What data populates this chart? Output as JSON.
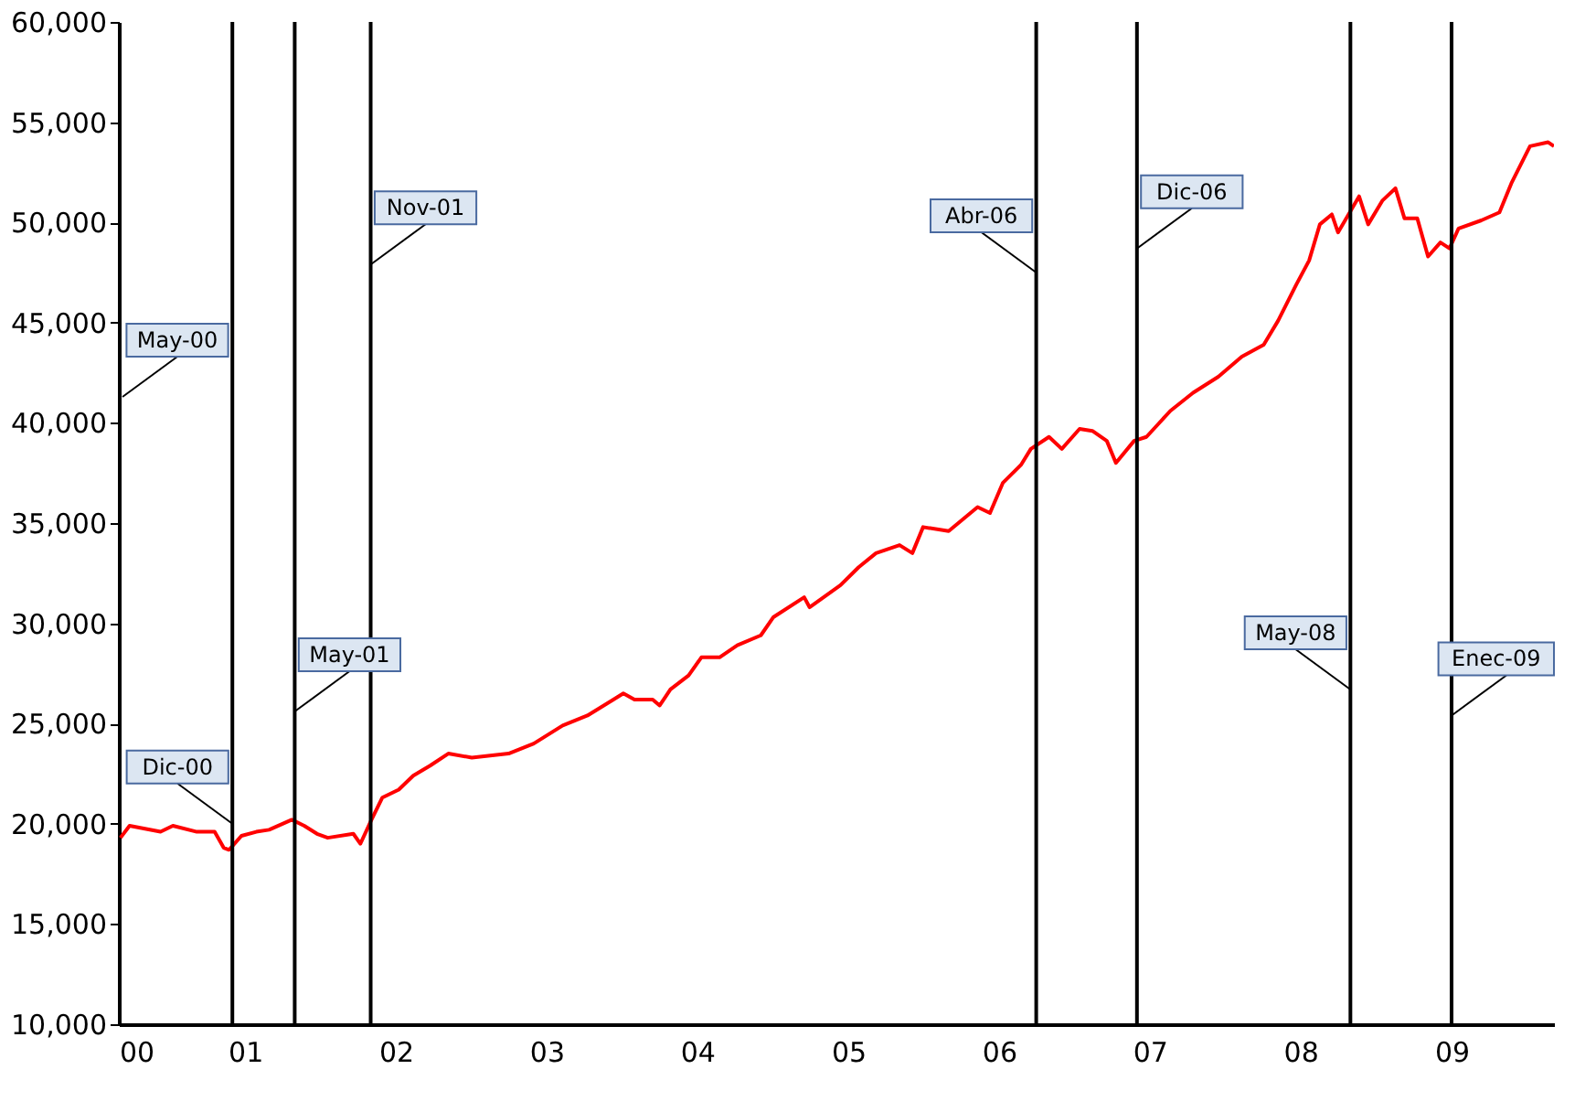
{
  "chart_data": {
    "type": "line",
    "x": [
      "2000-03-05",
      "2000-03-27",
      "2000-06-10",
      "2000-07-10",
      "2000-09-06",
      "2000-10-19",
      "2000-11-10",
      "2000-11-23",
      "2000-12-23",
      "2001-01-28",
      "2001-02-28",
      "2001-04-24",
      "2001-05-24",
      "2001-06-24",
      "2001-07-20",
      "2001-09-20",
      "2001-10-07",
      "2001-11-03",
      "2001-11-29",
      "2002-01-08",
      "2002-02-12",
      "2002-03-25",
      "2002-05-08",
      "2002-07-04",
      "2002-10-01",
      "2002-12-01",
      "2003-02-09",
      "2003-04-10",
      "2003-07-06",
      "2003-08-02",
      "2003-09-15",
      "2003-10-02",
      "2003-10-28",
      "2003-12-11",
      "2004-01-11",
      "2004-02-24",
      "2004-04-07",
      "2004-06-03",
      "2004-07-03",
      "2004-09-16",
      "2004-09-29",
      "2004-12-13",
      "2005-01-26",
      "2005-03-09",
      "2005-05-05",
      "2005-06-05",
      "2005-07-01",
      "2005-09-01",
      "2005-11-10",
      "2005-12-10",
      "2006-01-10",
      "2006-02-23",
      "2006-03-19",
      "2006-05-02",
      "2006-06-02",
      "2006-07-15",
      "2006-08-15",
      "2006-09-19",
      "2006-10-11",
      "2006-11-24",
      "2006-12-24",
      "2007-02-20",
      "2007-04-16",
      "2007-06-16",
      "2007-08-12",
      "2007-10-04",
      "2007-11-08",
      "2007-12-22",
      "2008-01-22",
      "2008-02-17",
      "2008-03-17",
      "2008-04-01",
      "2008-05-22",
      "2008-06-13",
      "2008-07-18",
      "2008-08-18",
      "2008-09-09",
      "2008-10-10",
      "2008-11-05",
      "2008-12-05",
      "2008-12-27",
      "2009-01-18",
      "2009-03-14",
      "2009-04-27",
      "2009-05-27",
      "2009-07-10",
      "2009-08-23",
      "2009-09-06"
    ],
    "series": [
      {
        "color": "#ff0000",
        "values": [
          19300,
          19900,
          19600,
          19900,
          19600,
          19600,
          18800,
          18700,
          19400,
          19600,
          19700,
          20200,
          19900,
          19500,
          19300,
          19500,
          19000,
          20200,
          21300,
          21700,
          22400,
          22900,
          23500,
          23300,
          23500,
          24000,
          24900,
          25400,
          26500,
          26200,
          26200,
          25900,
          26700,
          27400,
          28300,
          28300,
          28900,
          29400,
          30300,
          31300,
          30800,
          31900,
          32800,
          33500,
          33900,
          33500,
          34800,
          34600,
          35800,
          35500,
          37000,
          37900,
          38700,
          39300,
          38700,
          39700,
          39600,
          39100,
          38000,
          39100,
          39300,
          40600,
          41500,
          42300,
          43300,
          43900,
          45100,
          46900,
          48100,
          49900,
          50400,
          49500,
          51300,
          49900,
          51100,
          51700,
          50200,
          50200,
          48300,
          49000,
          48700,
          49700,
          50100,
          50500,
          52000,
          53800,
          54000,
          53800
        ]
      }
    ],
    "xlim": [
      "2000-03-01",
      "2009-09-06"
    ],
    "xticks": [
      {
        "value": "2000-03-01",
        "label": "00"
      },
      {
        "value": "2001-01-01",
        "label": "01"
      },
      {
        "value": "2002-01-01",
        "label": "02"
      },
      {
        "value": "2003-01-01",
        "label": "03"
      },
      {
        "value": "2004-01-01",
        "label": "04"
      },
      {
        "value": "2005-01-01",
        "label": "05"
      },
      {
        "value": "2006-01-01",
        "label": "06"
      },
      {
        "value": "2007-01-01",
        "label": "07"
      },
      {
        "value": "2008-01-01",
        "label": "08"
      },
      {
        "value": "2009-01-01",
        "label": "09"
      }
    ],
    "ylim": [
      10000,
      60000
    ],
    "yticks": [
      {
        "value": 10000,
        "label": "10,000"
      },
      {
        "value": 15000,
        "label": "15,000"
      },
      {
        "value": 20000,
        "label": "20,000"
      },
      {
        "value": 25000,
        "label": "25,000"
      },
      {
        "value": 30000,
        "label": "30,000"
      },
      {
        "value": 35000,
        "label": "35,000"
      },
      {
        "value": 40000,
        "label": "40,000"
      },
      {
        "value": 45000,
        "label": "45,000"
      },
      {
        "value": 50000,
        "label": "50,000"
      },
      {
        "value": 55000,
        "label": "55,000"
      },
      {
        "value": 60000,
        "label": "60,000"
      }
    ],
    "grid": false,
    "line_style": "solid",
    "marker": "none",
    "ref_lines": [
      {
        "axis": "x",
        "value": "2000-12-01",
        "color": "#000000"
      },
      {
        "axis": "x",
        "value": "2001-05-01",
        "color": "#000000"
      },
      {
        "axis": "x",
        "value": "2001-11-01",
        "color": "#000000"
      },
      {
        "axis": "x",
        "value": "2006-04-01",
        "color": "#000000"
      },
      {
        "axis": "x",
        "value": "2006-12-01",
        "color": "#000000"
      },
      {
        "axis": "x",
        "value": "2008-05-01",
        "color": "#000000"
      },
      {
        "axis": "x",
        "value": "2009-01-01",
        "color": "#000000"
      }
    ],
    "annotations": [
      "May-00",
      {
        "text": "Dic-00",
        "x": "2000-12-01",
        "y": 20000
      },
      {
        "text": "May-01",
        "x": "2001-05-01",
        "y": 25600
      },
      {
        "text": "Nov-01",
        "x": "2001-11-01",
        "y": 47900
      },
      {
        "text": "Abr-06",
        "x": "2006-04-01",
        "y": 47500
      },
      {
        "text": "Dic-06",
        "x": "2006-12-01",
        "y": 48700
      },
      {
        "text": "May-08",
        "x": "2008-05-01",
        "y": 26700
      },
      {
        "text": "Enec-09",
        "x": "2009-01-01",
        "y": 25400
      }
    ]
  }
}
